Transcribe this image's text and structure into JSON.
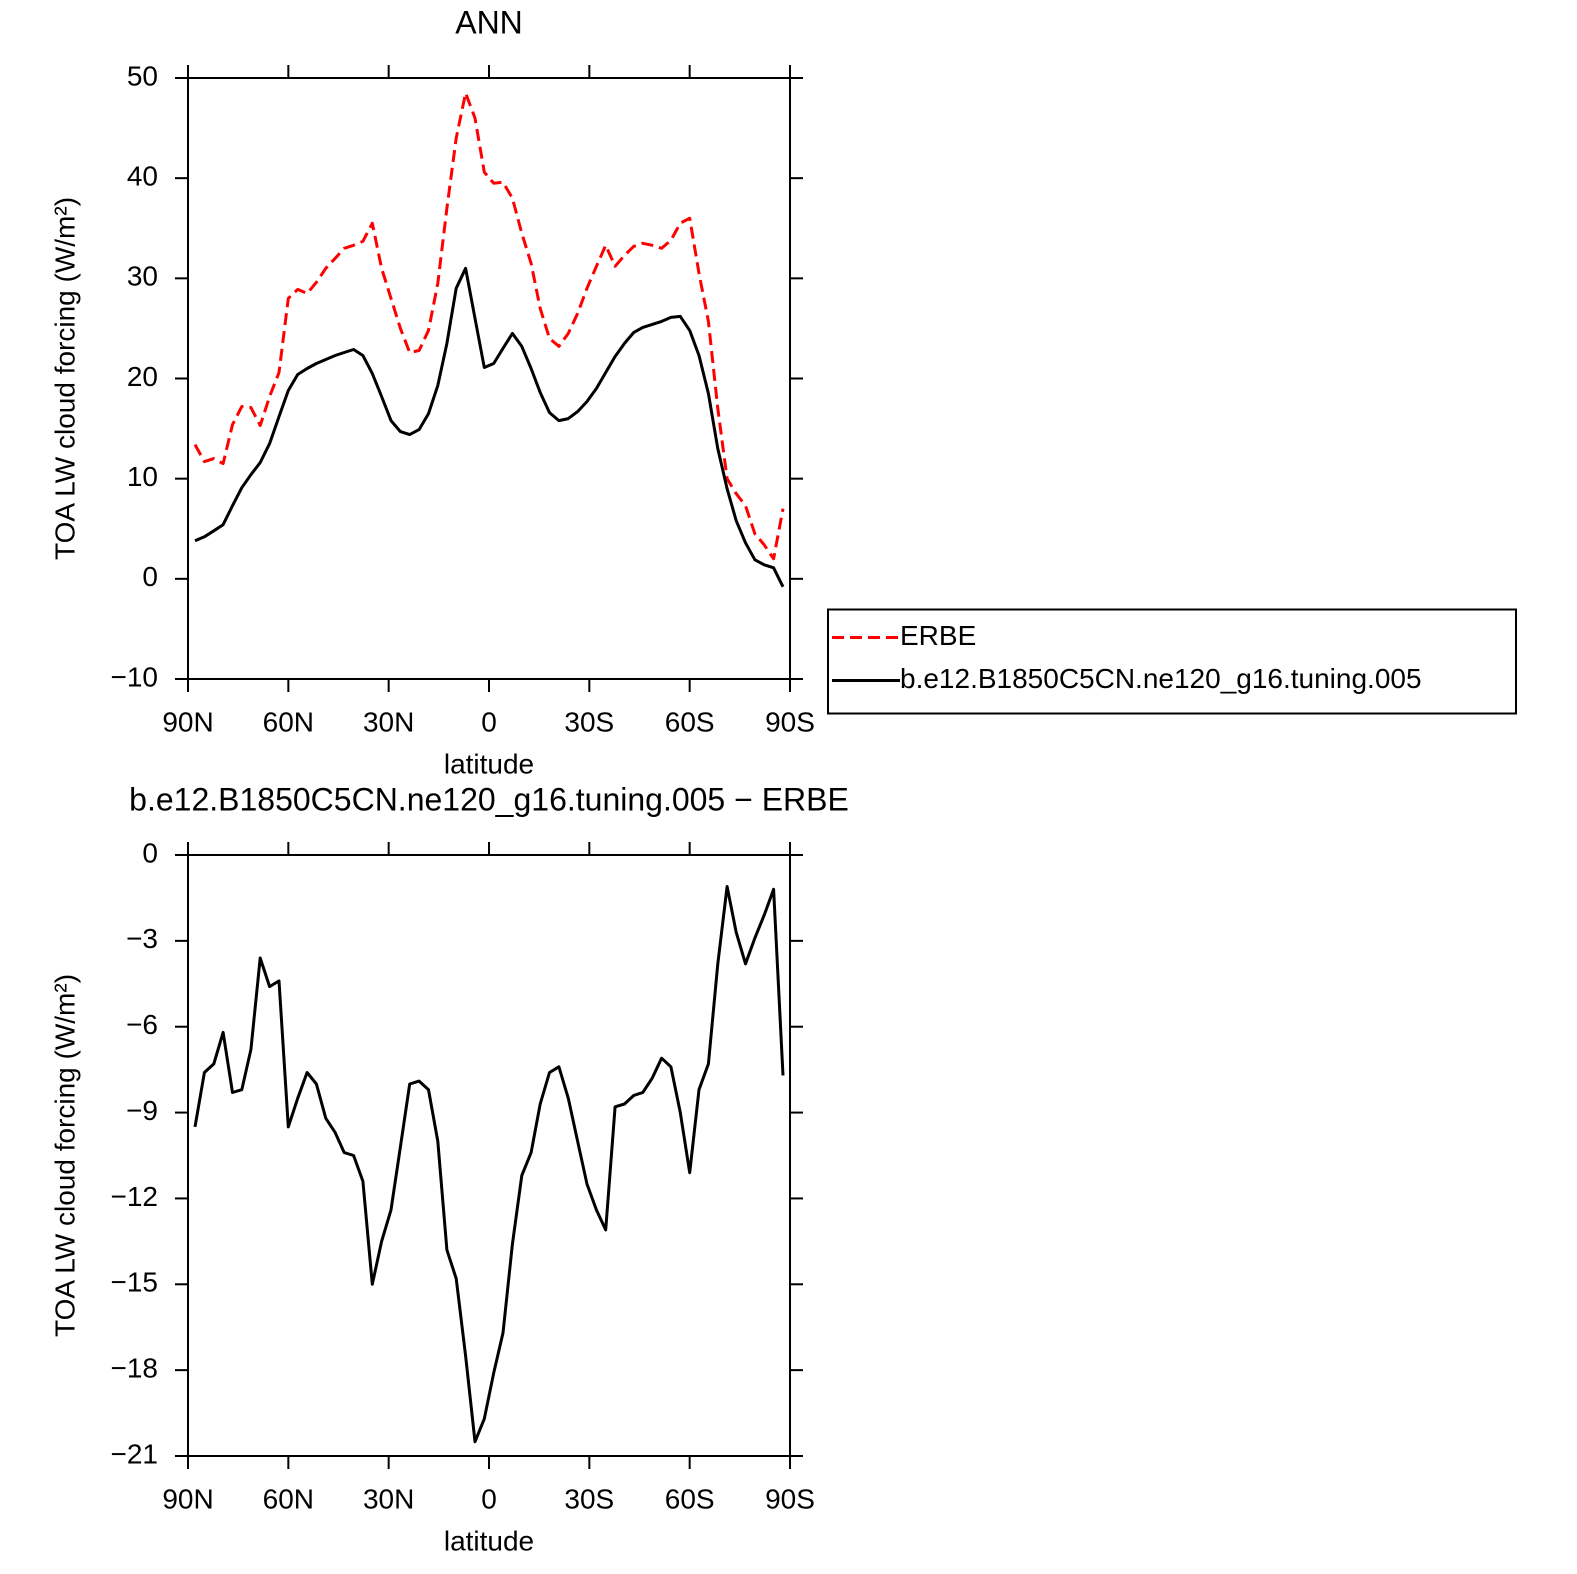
{
  "chart_data": [
    {
      "type": "line",
      "title": "ANN",
      "xlabel": "latitude",
      "ylabel": "TOA LW cloud forcing (W/m²)",
      "x": [
        87.9,
        85.1,
        82.3,
        79.5,
        76.7,
        73.9,
        71.2,
        68.4,
        65.6,
        62.8,
        60.0,
        57.2,
        54.4,
        51.6,
        48.8,
        46.0,
        43.3,
        40.5,
        37.7,
        34.9,
        32.1,
        29.3,
        26.5,
        23.7,
        20.9,
        18.1,
        15.3,
        12.6,
        9.8,
        7.0,
        4.2,
        1.4,
        -1.4,
        -4.2,
        -7.0,
        -9.8,
        -12.6,
        -15.3,
        -18.1,
        -20.9,
        -23.7,
        -26.5,
        -29.3,
        -32.1,
        -34.9,
        -37.7,
        -40.5,
        -43.3,
        -46.0,
        -48.8,
        -51.6,
        -54.4,
        -57.2,
        -60.0,
        -62.8,
        -65.6,
        -68.4,
        -71.2,
        -73.9,
        -76.7,
        -79.5,
        -82.3,
        -85.1,
        -87.9
      ],
      "xlim": [
        90,
        -90
      ],
      "xticks": [
        {
          "value": 90,
          "label": "90N"
        },
        {
          "value": 60,
          "label": "60N"
        },
        {
          "value": 30,
          "label": "30N"
        },
        0,
        {
          "value": -30,
          "label": "30S"
        },
        {
          "value": -60,
          "label": "60S"
        },
        {
          "value": -90,
          "label": "90S"
        }
      ],
      "ylim": [
        -10,
        50
      ],
      "yticks": [
        {
          "value": -10,
          "label": "−10"
        },
        0,
        10,
        20,
        30,
        40,
        50
      ],
      "legend": "right",
      "series": [
        {
          "name": "ERBE",
          "color": "#ff0000",
          "line_style": "dashed",
          "values": [
            13.4,
            11.7,
            12,
            11.5,
            15.4,
            17.2,
            17.1,
            15.3,
            18.2,
            20.6,
            28,
            28.9,
            28.5,
            29.6,
            31,
            32,
            33,
            33.3,
            33.7,
            35.5,
            31,
            28,
            25,
            22.6,
            22.8,
            24.8,
            29.5,
            37,
            44,
            48.5,
            46,
            40.6,
            39.5,
            39.6,
            38,
            34.5,
            31.5,
            27,
            24,
            23.2,
            24.5,
            26.5,
            29,
            31.2,
            33.3,
            31.2,
            32.3,
            33.2,
            33.5,
            33.3,
            33,
            33.8,
            35.5,
            36,
            30.5,
            25.7,
            17,
            10,
            8.5,
            7.3,
            4.5,
            3.4,
            2,
            7
          ]
        },
        {
          "name": "b.e12.B1850C5CN.ne120_g16.tuning.005",
          "color": "#000000",
          "line_style": "solid",
          "values": [
            3.8,
            4.2,
            4.8,
            5.4,
            7.3,
            9.1,
            10.4,
            11.6,
            13.5,
            16.2,
            18.8,
            20.4,
            21,
            21.5,
            21.9,
            22.3,
            22.6,
            22.9,
            22.3,
            20.5,
            18.2,
            15.8,
            14.7,
            14.4,
            14.9,
            16.5,
            19.3,
            23.5,
            29,
            31,
            26,
            21.1,
            21.5,
            23,
            24.5,
            23.2,
            21,
            18.6,
            16.6,
            15.8,
            16,
            16.7,
            17.7,
            19,
            20.6,
            22.2,
            23.5,
            24.6,
            25.1,
            25.4,
            25.7,
            26.1,
            26.2,
            24.8,
            22.3,
            18.5,
            13,
            9,
            5.8,
            3.6,
            1.9,
            1.4,
            1.1,
            -0.8
          ]
        }
      ]
    },
    {
      "type": "line",
      "title": "b.e12.B1850C5CN.ne120_g16.tuning.005 − ERBE",
      "xlabel": "latitude",
      "ylabel": "TOA LW cloud forcing (W/m²)",
      "x": [
        87.9,
        85.1,
        82.3,
        79.5,
        76.7,
        73.9,
        71.2,
        68.4,
        65.6,
        62.8,
        60.0,
        57.2,
        54.4,
        51.6,
        48.8,
        46.0,
        43.3,
        40.5,
        37.7,
        34.9,
        32.1,
        29.3,
        26.5,
        23.7,
        20.9,
        18.1,
        15.3,
        12.6,
        9.8,
        7.0,
        4.2,
        1.4,
        -1.4,
        -4.2,
        -7.0,
        -9.8,
        -12.6,
        -15.3,
        -18.1,
        -20.9,
        -23.7,
        -26.5,
        -29.3,
        -32.1,
        -34.9,
        -37.7,
        -40.5,
        -43.3,
        -46.0,
        -48.8,
        -51.6,
        -54.4,
        -57.2,
        -60.0,
        -62.8,
        -65.6,
        -68.4,
        -71.2,
        -73.9,
        -76.7,
        -79.5,
        -82.3,
        -85.1,
        -87.9
      ],
      "xlim": [
        90,
        -90
      ],
      "xticks": [
        {
          "value": 90,
          "label": "90N"
        },
        {
          "value": 60,
          "label": "60N"
        },
        {
          "value": 30,
          "label": "30N"
        },
        0,
        {
          "value": -30,
          "label": "30S"
        },
        {
          "value": -60,
          "label": "60S"
        },
        {
          "value": -90,
          "label": "90S"
        }
      ],
      "ylim": [
        -21,
        0
      ],
      "yticks": [
        {
          "value": -21,
          "label": "−21"
        },
        {
          "value": -18,
          "label": "−18"
        },
        {
          "value": -15,
          "label": "−15"
        },
        {
          "value": -12,
          "label": "−12"
        },
        {
          "value": -9,
          "label": "−9"
        },
        {
          "value": -6,
          "label": "−6"
        },
        {
          "value": -3,
          "label": "−3"
        },
        0
      ],
      "color": "#000000",
      "values": [
        -9.5,
        -7.6,
        -7.3,
        -6.2,
        -8.3,
        -8.2,
        -6.8,
        -3.6,
        -4.6,
        -4.4,
        -9.5,
        -8.5,
        -7.6,
        -8,
        -9.2,
        -9.7,
        -10.4,
        -10.5,
        -11.4,
        -15,
        -13.5,
        -12.4,
        -10.2,
        -8,
        -7.9,
        -8.2,
        -10,
        -13.8,
        -14.8,
        -17.5,
        -20.5,
        -19.7,
        -18.1,
        -16.7,
        -13.6,
        -11.2,
        -10.4,
        -8.7,
        -7.6,
        -7.4,
        -8.5,
        -10,
        -11.5,
        -12.4,
        -13.1,
        -8.8,
        -8.7,
        -8.4,
        -8.3,
        -7.8,
        -7.1,
        -7.4,
        -9,
        -11.1,
        -8.2,
        -7.3,
        -3.8,
        -1.1,
        -2.7,
        -3.8,
        -2.9,
        -2.1,
        -1.2,
        -7.7
      ]
    }
  ]
}
